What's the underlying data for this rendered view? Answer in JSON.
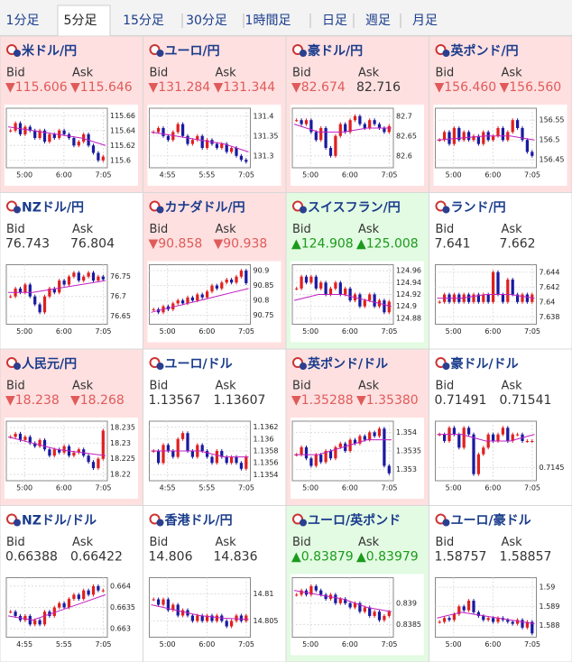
{
  "tabs": {
    "items": [
      "1分足",
      "5分足",
      "15分足",
      "30分足",
      "1時間足",
      "日足",
      "週足",
      "月足"
    ],
    "selected": 1
  },
  "labels": {
    "bid": "Bid",
    "ask": "Ask"
  },
  "panels": [
    {
      "name": "米ドル/円",
      "trend": "down",
      "bid": "▼115.606",
      "bid_dir": "down",
      "ask": "▼115.646",
      "ask_dir": "down",
      "ylim": [
        115.59,
        115.67
      ],
      "yticks": [
        115.66,
        115.64,
        115.62,
        115.6
      ],
      "xticks": [
        "5:00",
        "6:00",
        "7:05"
      ],
      "closes": [
        115.64,
        115.65,
        115.635,
        115.645,
        115.64,
        115.63,
        115.64,
        115.625,
        115.635,
        115.63,
        115.64,
        115.635,
        115.63,
        115.62,
        115.625,
        115.635,
        115.62,
        115.61,
        115.6,
        115.605
      ],
      "ma": [
        115.645,
        115.64,
        115.635,
        115.63,
        115.62
      ]
    },
    {
      "name": "ユーロ/円",
      "trend": "down",
      "bid": "▼131.284",
      "bid_dir": "down",
      "ask": "▼131.344",
      "ask_dir": "down",
      "ylim": [
        131.27,
        131.42
      ],
      "yticks": [
        131.4,
        131.35,
        131.3
      ],
      "xticks": [
        "4:55",
        "5:55",
        "7:05"
      ],
      "closes": [
        131.36,
        131.37,
        131.35,
        131.34,
        131.36,
        131.38,
        131.35,
        131.33,
        131.34,
        131.35,
        131.32,
        131.34,
        131.33,
        131.32,
        131.33,
        131.31,
        131.32,
        131.3,
        131.29,
        131.285
      ],
      "ma": [
        131.36,
        131.35,
        131.34,
        131.33,
        131.31
      ]
    },
    {
      "name": "豪ドル/円",
      "trend": "down",
      "bid": "▼82.674",
      "bid_dir": "down",
      "ask": "82.716",
      "ask_dir": "flat",
      "ylim": [
        82.57,
        82.72
      ],
      "yticks": [
        82.7,
        82.65,
        82.6
      ],
      "xticks": [
        "5:00",
        "6:00",
        "7:05"
      ],
      "closes": [
        82.69,
        82.68,
        82.69,
        82.66,
        82.64,
        82.67,
        82.62,
        82.6,
        82.65,
        82.68,
        82.66,
        82.69,
        82.7,
        82.68,
        82.67,
        82.69,
        82.68,
        82.67,
        82.66,
        82.675
      ],
      "ma": [
        82.68,
        82.66,
        82.66,
        82.67,
        82.67
      ]
    },
    {
      "name": "英ポンド/円",
      "trend": "down",
      "bid": "▼156.460",
      "bid_dir": "down",
      "ask": "▼156.560",
      "ask_dir": "down",
      "ylim": [
        156.43,
        156.58
      ],
      "yticks": [
        156.55,
        156.5,
        156.45
      ],
      "xticks": [
        "5:00",
        "6:00",
        "7:05"
      ],
      "closes": [
        156.5,
        156.52,
        156.49,
        156.53,
        156.5,
        156.52,
        156.5,
        156.51,
        156.49,
        156.52,
        156.5,
        156.51,
        156.53,
        156.5,
        156.52,
        156.55,
        156.53,
        156.5,
        156.47,
        156.46
      ],
      "ma": [
        156.5,
        156.505,
        156.51,
        156.51,
        156.5
      ]
    },
    {
      "name": "NZドル/円",
      "trend": "flat",
      "bid": "76.743",
      "bid_dir": "flat",
      "ask": "76.804",
      "ask_dir": "flat",
      "ylim": [
        76.63,
        76.78
      ],
      "yticks": [
        76.75,
        76.7,
        76.65
      ],
      "xticks": [
        "5:00",
        "6:00",
        "7:05"
      ],
      "closes": [
        76.7,
        76.72,
        76.71,
        76.73,
        76.7,
        76.68,
        76.66,
        76.7,
        76.72,
        76.71,
        76.74,
        76.73,
        76.75,
        76.76,
        76.74,
        76.75,
        76.76,
        76.74,
        76.75,
        76.743
      ],
      "ma": [
        76.71,
        76.71,
        76.72,
        76.73,
        76.74
      ]
    },
    {
      "name": "カナダドル/円",
      "trend": "down",
      "bid": "▼90.858",
      "bid_dir": "down",
      "ask": "▼90.938",
      "ask_dir": "down",
      "ylim": [
        90.72,
        90.92
      ],
      "yticks": [
        90.9,
        90.85,
        90.8,
        90.75
      ],
      "xticks": [
        "5:00",
        "6:00",
        "7:05"
      ],
      "closes": [
        90.77,
        90.76,
        90.78,
        90.77,
        90.79,
        90.8,
        90.79,
        90.81,
        90.8,
        90.82,
        90.81,
        90.83,
        90.85,
        90.84,
        90.86,
        90.87,
        90.86,
        90.88,
        90.9,
        90.858
      ],
      "ma": [
        90.76,
        90.78,
        90.8,
        90.82,
        90.84
      ]
    },
    {
      "name": "スイスフラン/円",
      "trend": "up",
      "bid": "▲124.908",
      "bid_dir": "up",
      "ask": "▲125.008",
      "ask_dir": "up",
      "ylim": [
        124.87,
        124.97
      ],
      "yticks": [
        124.96,
        124.94,
        124.92,
        124.9,
        124.88
      ],
      "xticks": [
        "5:00",
        "6:00",
        "7:05"
      ],
      "closes": [
        124.93,
        124.95,
        124.94,
        124.95,
        124.93,
        124.94,
        124.92,
        124.93,
        124.94,
        124.92,
        124.93,
        124.91,
        124.92,
        124.9,
        124.91,
        124.92,
        124.9,
        124.91,
        124.89,
        124.908
      ],
      "ma": [
        124.91,
        124.92,
        124.92,
        124.91,
        124.9
      ]
    },
    {
      "name": "ランド/円",
      "trend": "flat",
      "bid": "7.641",
      "bid_dir": "flat",
      "ask": "7.662",
      "ask_dir": "flat",
      "ylim": [
        7.637,
        7.645
      ],
      "yticks": [
        7.644,
        7.642,
        7.64,
        7.638
      ],
      "xticks": [
        "5:00",
        "6:00",
        "7:05"
      ],
      "closes": [
        7.64,
        7.641,
        7.64,
        7.641,
        7.64,
        7.641,
        7.64,
        7.641,
        7.64,
        7.641,
        7.64,
        7.644,
        7.641,
        7.64,
        7.643,
        7.641,
        7.64,
        7.641,
        7.64,
        7.641
      ],
      "ma": [
        7.6405,
        7.6405,
        7.641,
        7.641,
        7.6405
      ]
    },
    {
      "name": "人民元/円",
      "trend": "down",
      "bid": "▼18.238",
      "bid_dir": "down",
      "ask": "▼18.268",
      "ask_dir": "down",
      "ylim": [
        18.218,
        18.237
      ],
      "yticks": [
        18.235,
        18.23,
        18.225,
        18.22
      ],
      "xticks": [
        "5:00",
        "6:00",
        "7:05"
      ],
      "closes": [
        18.232,
        18.233,
        18.231,
        18.232,
        18.23,
        18.229,
        18.231,
        18.228,
        18.226,
        18.228,
        18.227,
        18.229,
        18.226,
        18.227,
        18.228,
        18.226,
        18.224,
        18.222,
        18.225,
        18.234
      ],
      "ma": [
        18.232,
        18.23,
        18.228,
        18.227,
        18.226
      ]
    },
    {
      "name": "ユーロ/ドル",
      "trend": "flat",
      "bid": "1.13567",
      "bid_dir": "flat",
      "ask": "1.13607",
      "ask_dir": "flat",
      "ylim": [
        1.1353,
        1.1363
      ],
      "yticks": [
        1.1362,
        1.136,
        1.1358,
        1.1356,
        1.1354
      ],
      "xticks": [
        "4:55",
        "5:55",
        "7:05"
      ],
      "closes": [
        1.1358,
        1.1356,
        1.1359,
        1.1358,
        1.1357,
        1.136,
        1.1361,
        1.1358,
        1.1357,
        1.1359,
        1.1358,
        1.1357,
        1.1356,
        1.1358,
        1.1357,
        1.1356,
        1.1357,
        1.1356,
        1.1355,
        1.1357
      ],
      "ma": [
        1.1358,
        1.1358,
        1.1358,
        1.1357,
        1.1357
      ]
    },
    {
      "name": "英ポンド/ドル",
      "trend": "down",
      "bid": "▼1.35288",
      "bid_dir": "down",
      "ask": "▼1.35380",
      "ask_dir": "down",
      "ylim": [
        1.3527,
        1.3543
      ],
      "yticks": [
        1.354,
        1.3535,
        1.353
      ],
      "xticks": [
        "5:00",
        "6:00",
        "7:05"
      ],
      "closes": [
        1.3534,
        1.3536,
        1.3533,
        1.3531,
        1.3534,
        1.3532,
        1.3535,
        1.3533,
        1.3536,
        1.3537,
        1.3535,
        1.3538,
        1.3537,
        1.3539,
        1.3538,
        1.354,
        1.3539,
        1.3541,
        1.3531,
        1.3529
      ],
      "ma": [
        1.3534,
        1.3534,
        1.3536,
        1.3538,
        1.3538
      ]
    },
    {
      "name": "豪ドル/ドル",
      "trend": "flat",
      "bid": "0.71491",
      "bid_dir": "flat",
      "ask": "0.71541",
      "ask_dir": "flat",
      "ylim": [
        0.7143,
        0.7152
      ],
      "yticks": [
        0.7145
      ],
      "xticks": [
        "5:00",
        "6:00",
        "7:05"
      ],
      "closes": [
        0.715,
        0.7149,
        0.7151,
        0.715,
        0.7148,
        0.7151,
        0.715,
        0.7144,
        0.7147,
        0.7148,
        0.715,
        0.7149,
        0.715,
        0.7151,
        0.7149,
        0.715,
        0.715,
        0.7149,
        0.7149,
        0.7149
      ],
      "ma": [
        0.715,
        0.715,
        0.7149,
        0.7149,
        0.715
      ]
    },
    {
      "name": "NZドル/ドル",
      "trend": "flat",
      "bid": "0.66388",
      "bid_dir": "flat",
      "ask": "0.66422",
      "ask_dir": "flat",
      "ylim": [
        0.6628,
        0.6642
      ],
      "yticks": [
        0.664,
        0.6635,
        0.663
      ],
      "xticks": [
        "4:55",
        "5:55",
        "7:05"
      ],
      "closes": [
        0.6634,
        0.6633,
        0.6632,
        0.6633,
        0.6631,
        0.6632,
        0.6631,
        0.6634,
        0.6633,
        0.6635,
        0.6636,
        0.6635,
        0.6637,
        0.6638,
        0.6637,
        0.6639,
        0.6638,
        0.664,
        0.6639,
        0.6639
      ],
      "ma": [
        0.6633,
        0.6632,
        0.6634,
        0.6636,
        0.6638
      ]
    },
    {
      "name": "香港ドル/円",
      "trend": "flat",
      "bid": "14.806",
      "bid_dir": "flat",
      "ask": "14.836",
      "ask_dir": "flat",
      "ylim": [
        14.802,
        14.813
      ],
      "yticks": [
        14.81,
        14.805
      ],
      "xticks": [
        "5:00",
        "6:00",
        "7:05"
      ],
      "closes": [
        14.809,
        14.808,
        14.809,
        14.807,
        14.808,
        14.806,
        14.807,
        14.806,
        14.805,
        14.806,
        14.805,
        14.806,
        14.805,
        14.806,
        14.805,
        14.804,
        14.805,
        14.806,
        14.805,
        14.806
      ],
      "ma": [
        14.808,
        14.807,
        14.806,
        14.8055,
        14.8053
      ]
    },
    {
      "name": "ユーロ/英ポンド",
      "trend": "up",
      "bid": "▲0.83879",
      "bid_dir": "up",
      "ask": "▲0.83979",
      "ask_dir": "up",
      "ylim": [
        0.8382,
        0.8396
      ],
      "yticks": [
        0.839,
        0.8385
      ],
      "xticks": [
        "5:00",
        "6:00",
        "7:05"
      ],
      "closes": [
        0.8392,
        0.8393,
        0.8392,
        0.8394,
        0.8393,
        0.8392,
        0.8391,
        0.8392,
        0.839,
        0.8391,
        0.839,
        0.8389,
        0.839,
        0.8388,
        0.8389,
        0.8387,
        0.8388,
        0.8386,
        0.8387,
        0.8388
      ],
      "ma": [
        0.8393,
        0.8392,
        0.8391,
        0.8389,
        0.8388
      ]
    },
    {
      "name": "ユーロ/豪ドル",
      "trend": "flat",
      "bid": "1.58757",
      "bid_dir": "flat",
      "ask": "1.58857",
      "ask_dir": "flat",
      "ylim": [
        1.5874,
        1.5905
      ],
      "yticks": [
        1.59,
        1.589,
        1.588
      ],
      "xticks": [
        "5:00",
        "6:00",
        "7:05"
      ],
      "closes": [
        1.5882,
        1.5884,
        1.5883,
        1.5886,
        1.589,
        1.5888,
        1.5893,
        1.5887,
        1.5885,
        1.5883,
        1.5884,
        1.5882,
        1.5884,
        1.5883,
        1.5882,
        1.5881,
        1.5883,
        1.5879,
        1.5882,
        1.5876
      ],
      "ma": [
        1.5884,
        1.5887,
        1.5885,
        1.5883,
        1.5881
      ]
    }
  ]
}
